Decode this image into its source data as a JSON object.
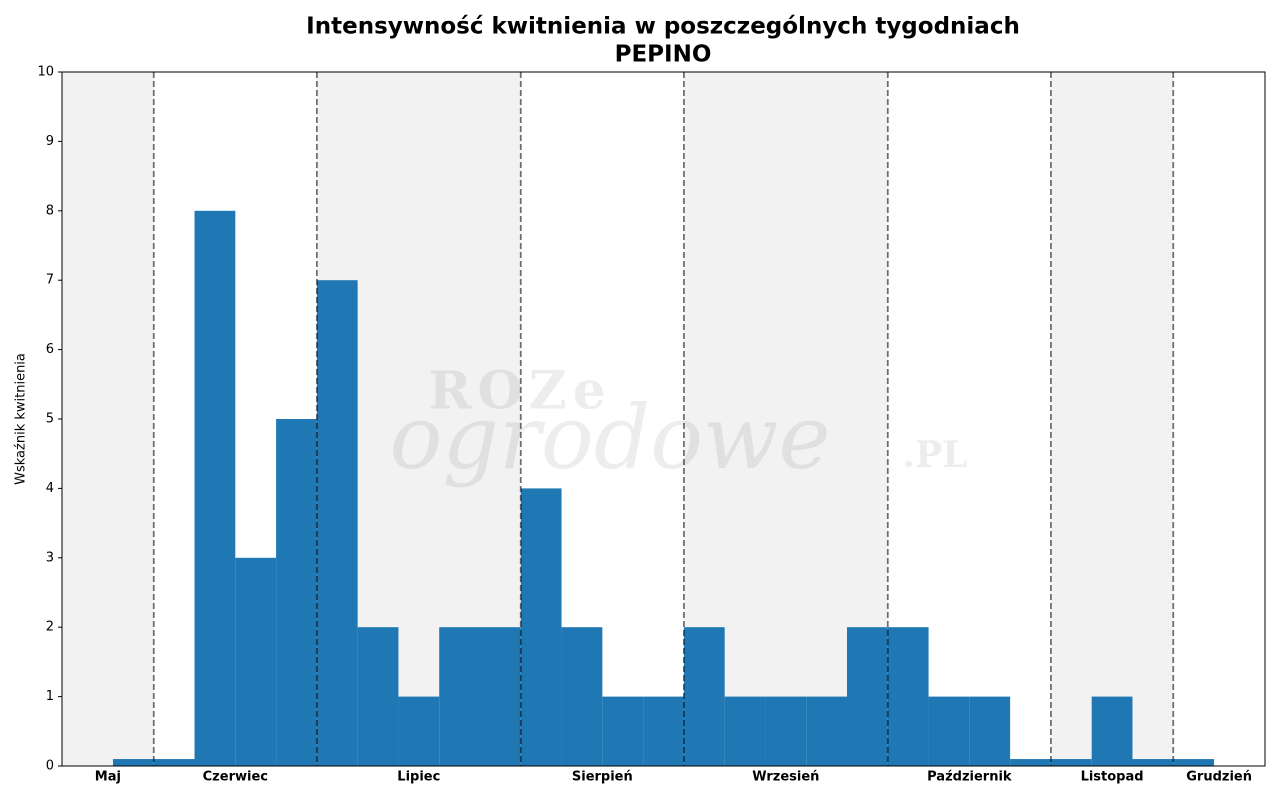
{
  "chart_data": {
    "type": "bar",
    "title": "Intensywność kwitnienia w poszczególnych tygodniach",
    "subtitle": "PEPINO",
    "y_label": "Wskaźnik kwitnienia",
    "watermark": [
      "ROZe",
      "ogrodowe",
      ".PL"
    ],
    "x": [
      20,
      21,
      22,
      23,
      24,
      25,
      26,
      27,
      28,
      29,
      30,
      31,
      32,
      33,
      34,
      35,
      36,
      37,
      38,
      39,
      40,
      41,
      42,
      43,
      44,
      45,
      46
    ],
    "values": [
      0.1,
      0.1,
      8,
      3,
      5,
      7,
      2,
      1,
      2,
      2,
      4,
      2,
      1,
      1,
      2,
      1,
      1,
      1,
      2,
      2,
      1,
      1,
      0.1,
      0.1,
      1,
      0.1,
      0.1
    ],
    "color": "#1f77b4",
    "xlim": [
      18.25,
      47.75
    ],
    "ylim": [
      0,
      10
    ],
    "yticks": [
      0,
      1,
      2,
      3,
      4,
      5,
      6,
      7,
      8,
      9,
      10
    ],
    "month_boundaries": [
      20.5,
      24.5,
      29.5,
      33.5,
      38.5,
      42.5,
      45.5
    ],
    "months": [
      "Maj",
      "Czerwiec",
      "Lipiec",
      "Sierpień",
      "Wrzesień",
      "Październik",
      "Listopad",
      "Grudzień"
    ]
  }
}
